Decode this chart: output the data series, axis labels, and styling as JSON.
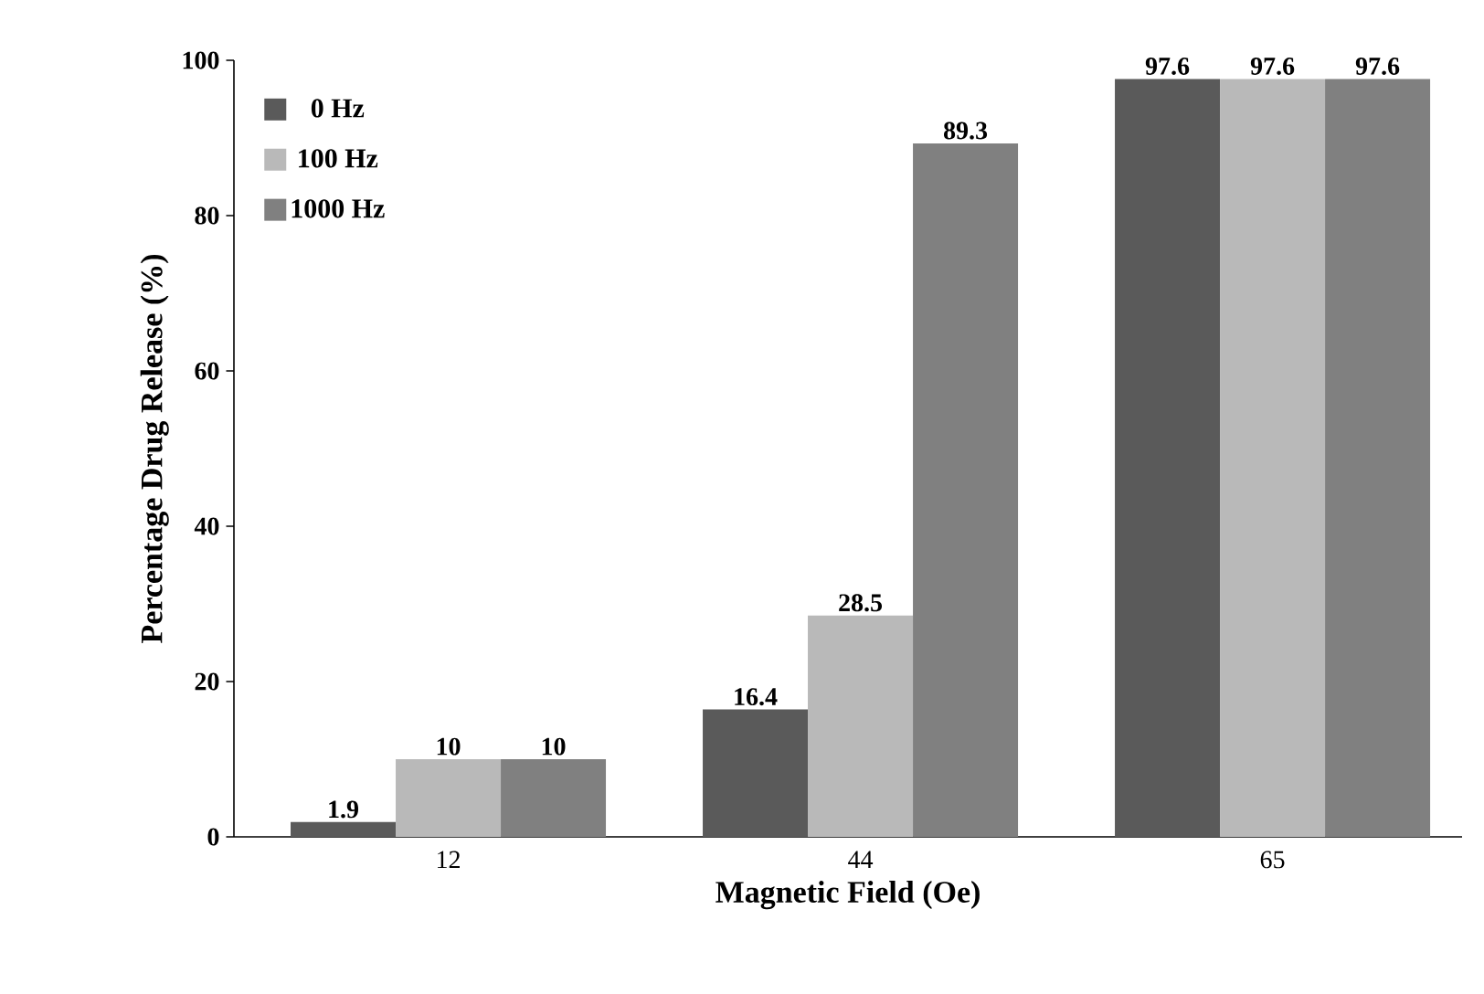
{
  "chart_data": {
    "type": "bar",
    "xlabel": "Magnetic Field (Oe)",
    "ylabel": "Percentage Drug Release (%)",
    "categories": [
      "12",
      "44",
      "65"
    ],
    "series": [
      {
        "name": "0 Hz",
        "color": "#5a5a5a",
        "values": [
          1.9,
          16.4,
          97.6
        ]
      },
      {
        "name": "100 Hz",
        "color": "#b9b9b9",
        "values": [
          10,
          28.5,
          97.6
        ]
      },
      {
        "name": "1000 Hz",
        "color": "#808080",
        "values": [
          10,
          89.3,
          97.6
        ]
      }
    ],
    "ylim": [
      0,
      100
    ],
    "yticks": [
      0,
      20,
      40,
      60,
      80,
      100
    ],
    "legend": "top left",
    "data_labels": true
  }
}
